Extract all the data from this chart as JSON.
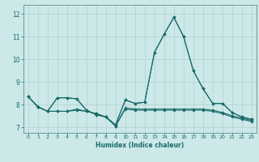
{
  "xlabel": "Humidex (Indice chaleur)",
  "bg_color": "#cce8e8",
  "line_color": "#1a6b6b",
  "grid_color": "#aacccc",
  "spine_color": "#5a9090",
  "xlim": [
    -0.5,
    23.5
  ],
  "ylim": [
    6.75,
    12.4
  ],
  "xticks": [
    0,
    1,
    2,
    3,
    4,
    5,
    6,
    7,
    8,
    9,
    10,
    11,
    12,
    13,
    14,
    15,
    16,
    17,
    18,
    19,
    20,
    21,
    22,
    23
  ],
  "yticks": [
    7,
    8,
    9,
    10,
    11,
    12
  ],
  "series": [
    [
      8.35,
      7.9,
      7.7,
      8.3,
      8.3,
      8.25,
      7.75,
      7.55,
      7.45,
      7.1,
      8.2,
      8.05,
      8.1,
      10.3,
      11.1,
      11.85,
      11.0,
      9.5,
      8.7,
      8.05,
      8.05,
      7.65,
      7.45,
      7.35
    ],
    [
      8.35,
      7.9,
      7.7,
      7.7,
      7.7,
      7.75,
      7.7,
      7.6,
      7.45,
      7.05,
      7.85,
      7.8,
      7.8,
      7.8,
      7.8,
      7.8,
      7.8,
      7.8,
      7.8,
      7.75,
      7.65,
      7.5,
      7.4,
      7.3
    ],
    [
      8.35,
      7.9,
      7.7,
      7.7,
      7.7,
      7.8,
      7.7,
      7.6,
      7.45,
      7.05,
      7.8,
      7.75,
      7.75,
      7.75,
      7.75,
      7.75,
      7.75,
      7.75,
      7.75,
      7.7,
      7.6,
      7.45,
      7.35,
      7.25
    ],
    [
      8.35,
      7.9,
      7.7,
      8.3,
      8.3,
      8.25,
      7.75,
      7.55,
      7.45,
      7.1,
      8.2,
      8.05,
      8.1,
      10.3,
      11.1,
      11.85,
      11.0,
      9.5,
      8.7,
      8.05,
      8.05,
      7.65,
      7.45,
      7.35
    ]
  ]
}
